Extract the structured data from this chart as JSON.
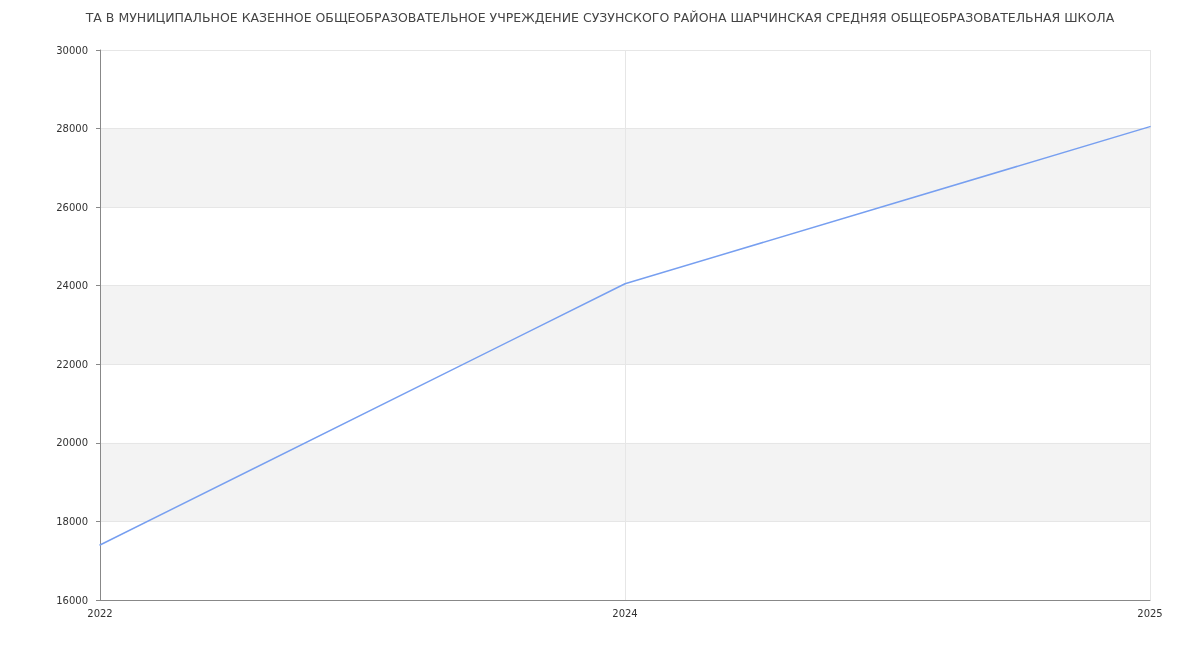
{
  "chart_data": {
    "type": "line",
    "title": "ТА В МУНИЦИПАЛЬНОЕ КАЗЕННОЕ ОБЩЕОБРАЗОВАТЕЛЬНОЕ УЧРЕЖДЕНИЕ СУЗУНСКОГО РАЙОНА ШАРЧИНСКАЯ СРЕДНЯЯ ОБЩЕОБРАЗОВАТЕЛЬНАЯ ШКОЛА",
    "categories": [
      "2022",
      "2024",
      "2025"
    ],
    "series": [
      {
        "color": "#779ff0",
        "values": [
          17400,
          24050,
          28050
        ]
      }
    ],
    "ylim": [
      16000,
      30000
    ],
    "yticks": [
      16000,
      18000,
      20000,
      22000,
      24000,
      26000,
      28000,
      30000
    ],
    "grid": true,
    "marker": "none",
    "line_style": "solid"
  }
}
